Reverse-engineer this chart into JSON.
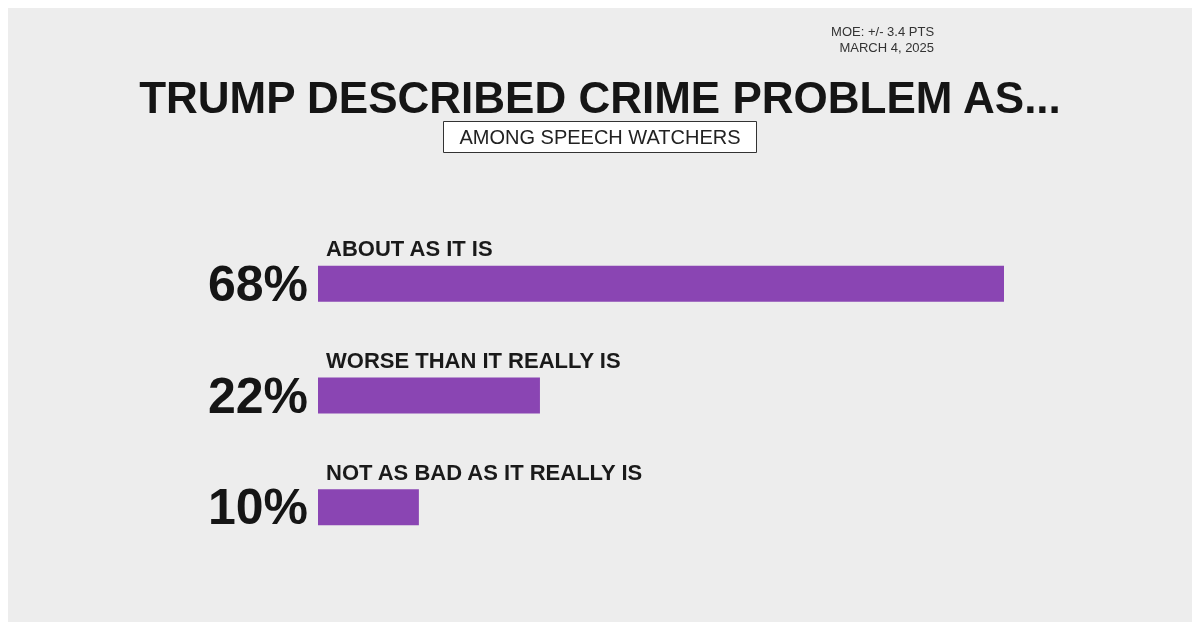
{
  "chart_data": {
    "type": "bar",
    "orientation": "horizontal",
    "title": "TRUMP DESCRIBED CRIME PROBLEM AS...",
    "subtitle": "AMONG SPEECH WATCHERS",
    "annotations": [
      "MOE: +/- 3.4 PTS",
      "MARCH 4, 2025"
    ],
    "categories": [
      "ABOUT AS IT IS",
      "WORSE THAN IT REALLY IS",
      "NOT AS BAD AS IT REALLY IS"
    ],
    "values": [
      68,
      22,
      10
    ],
    "value_labels": [
      "68%",
      "22%",
      "10%"
    ],
    "color": "#8a45b3"
  }
}
